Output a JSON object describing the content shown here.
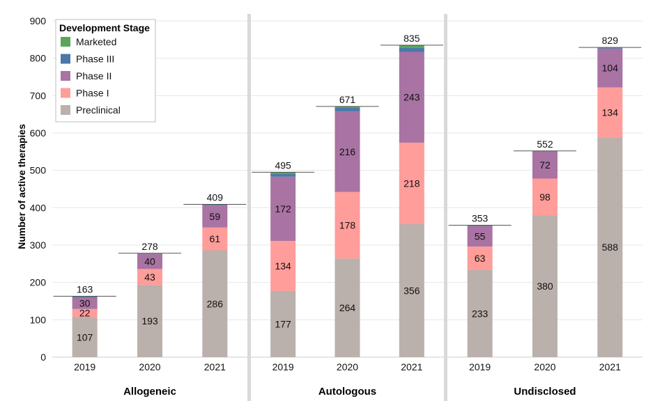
{
  "chart_data": {
    "type": "bar",
    "stacked": true,
    "ylabel": "Number of active therapies",
    "ylim": [
      0,
      900
    ],
    "yticks": [
      0,
      100,
      200,
      300,
      400,
      500,
      600,
      700,
      800,
      900
    ],
    "legend": {
      "title": "Development Stage",
      "placement": "top-left",
      "entries": [
        {
          "name": "Marketed",
          "color": "#5aa55a"
        },
        {
          "name": "Phase III",
          "color": "#4a78a8"
        },
        {
          "name": "Phase II",
          "color": "#a973a3"
        },
        {
          "name": "Phase I",
          "color": "#ff9d9a"
        },
        {
          "name": "Preclinical",
          "color": "#bab0ac"
        }
      ]
    },
    "stack_order": [
      "Preclinical",
      "Phase I",
      "Phase II",
      "Phase III",
      "Marketed"
    ],
    "panels": [
      {
        "name": "Allogeneic",
        "categories": [
          "2019",
          "2020",
          "2021"
        ],
        "totals": [
          163,
          278,
          409
        ],
        "series": [
          {
            "name": "Preclinical",
            "values": [
              107,
              193,
              286
            ],
            "labels": [
              "107",
              "193",
              "286"
            ]
          },
          {
            "name": "Phase I",
            "values": [
              22,
              43,
              61
            ],
            "labels": [
              "22",
              "43",
              "61"
            ]
          },
          {
            "name": "Phase II",
            "values": [
              30,
              40,
              59
            ],
            "labels": [
              "30",
              "40",
              "59"
            ]
          },
          {
            "name": "Phase III",
            "values": [
              3,
              1,
              2
            ],
            "labels": [
              "",
              "",
              ""
            ]
          },
          {
            "name": "Marketed",
            "values": [
              1,
              1,
              1
            ],
            "labels": [
              "",
              "",
              ""
            ]
          }
        ]
      },
      {
        "name": "Autologous",
        "categories": [
          "2019",
          "2020",
          "2021"
        ],
        "totals": [
          495,
          671,
          835
        ],
        "series": [
          {
            "name": "Preclinical",
            "values": [
              177,
              264,
              356
            ],
            "labels": [
              "177",
              "264",
              "356"
            ]
          },
          {
            "name": "Phase I",
            "values": [
              134,
              178,
              218
            ],
            "labels": [
              "134",
              "178",
              "218"
            ]
          },
          {
            "name": "Phase II",
            "values": [
              172,
              216,
              243
            ],
            "labels": [
              "172",
              "216",
              "243"
            ]
          },
          {
            "name": "Phase III",
            "values": [
              7,
              9,
              11
            ],
            "labels": [
              "",
              "",
              ""
            ]
          },
          {
            "name": "Marketed",
            "values": [
              5,
              4,
              7
            ],
            "labels": [
              "",
              "",
              ""
            ]
          }
        ]
      },
      {
        "name": "Undisclosed",
        "categories": [
          "2019",
          "2020",
          "2021"
        ],
        "totals": [
          353,
          552,
          829
        ],
        "series": [
          {
            "name": "Preclinical",
            "values": [
              233,
              380,
              588
            ],
            "labels": [
              "233",
              "380",
              "588"
            ]
          },
          {
            "name": "Phase I",
            "values": [
              63,
              98,
              134
            ],
            "labels": [
              "63",
              "98",
              "134"
            ]
          },
          {
            "name": "Phase II",
            "values": [
              55,
              72,
              104
            ],
            "labels": [
              "55",
              "72",
              "104"
            ]
          },
          {
            "name": "Phase III",
            "values": [
              2,
              2,
              2
            ],
            "labels": [
              "",
              "",
              ""
            ]
          },
          {
            "name": "Marketed",
            "values": [
              0,
              0,
              1
            ],
            "labels": [
              "",
              "",
              ""
            ]
          }
        ]
      }
    ]
  }
}
